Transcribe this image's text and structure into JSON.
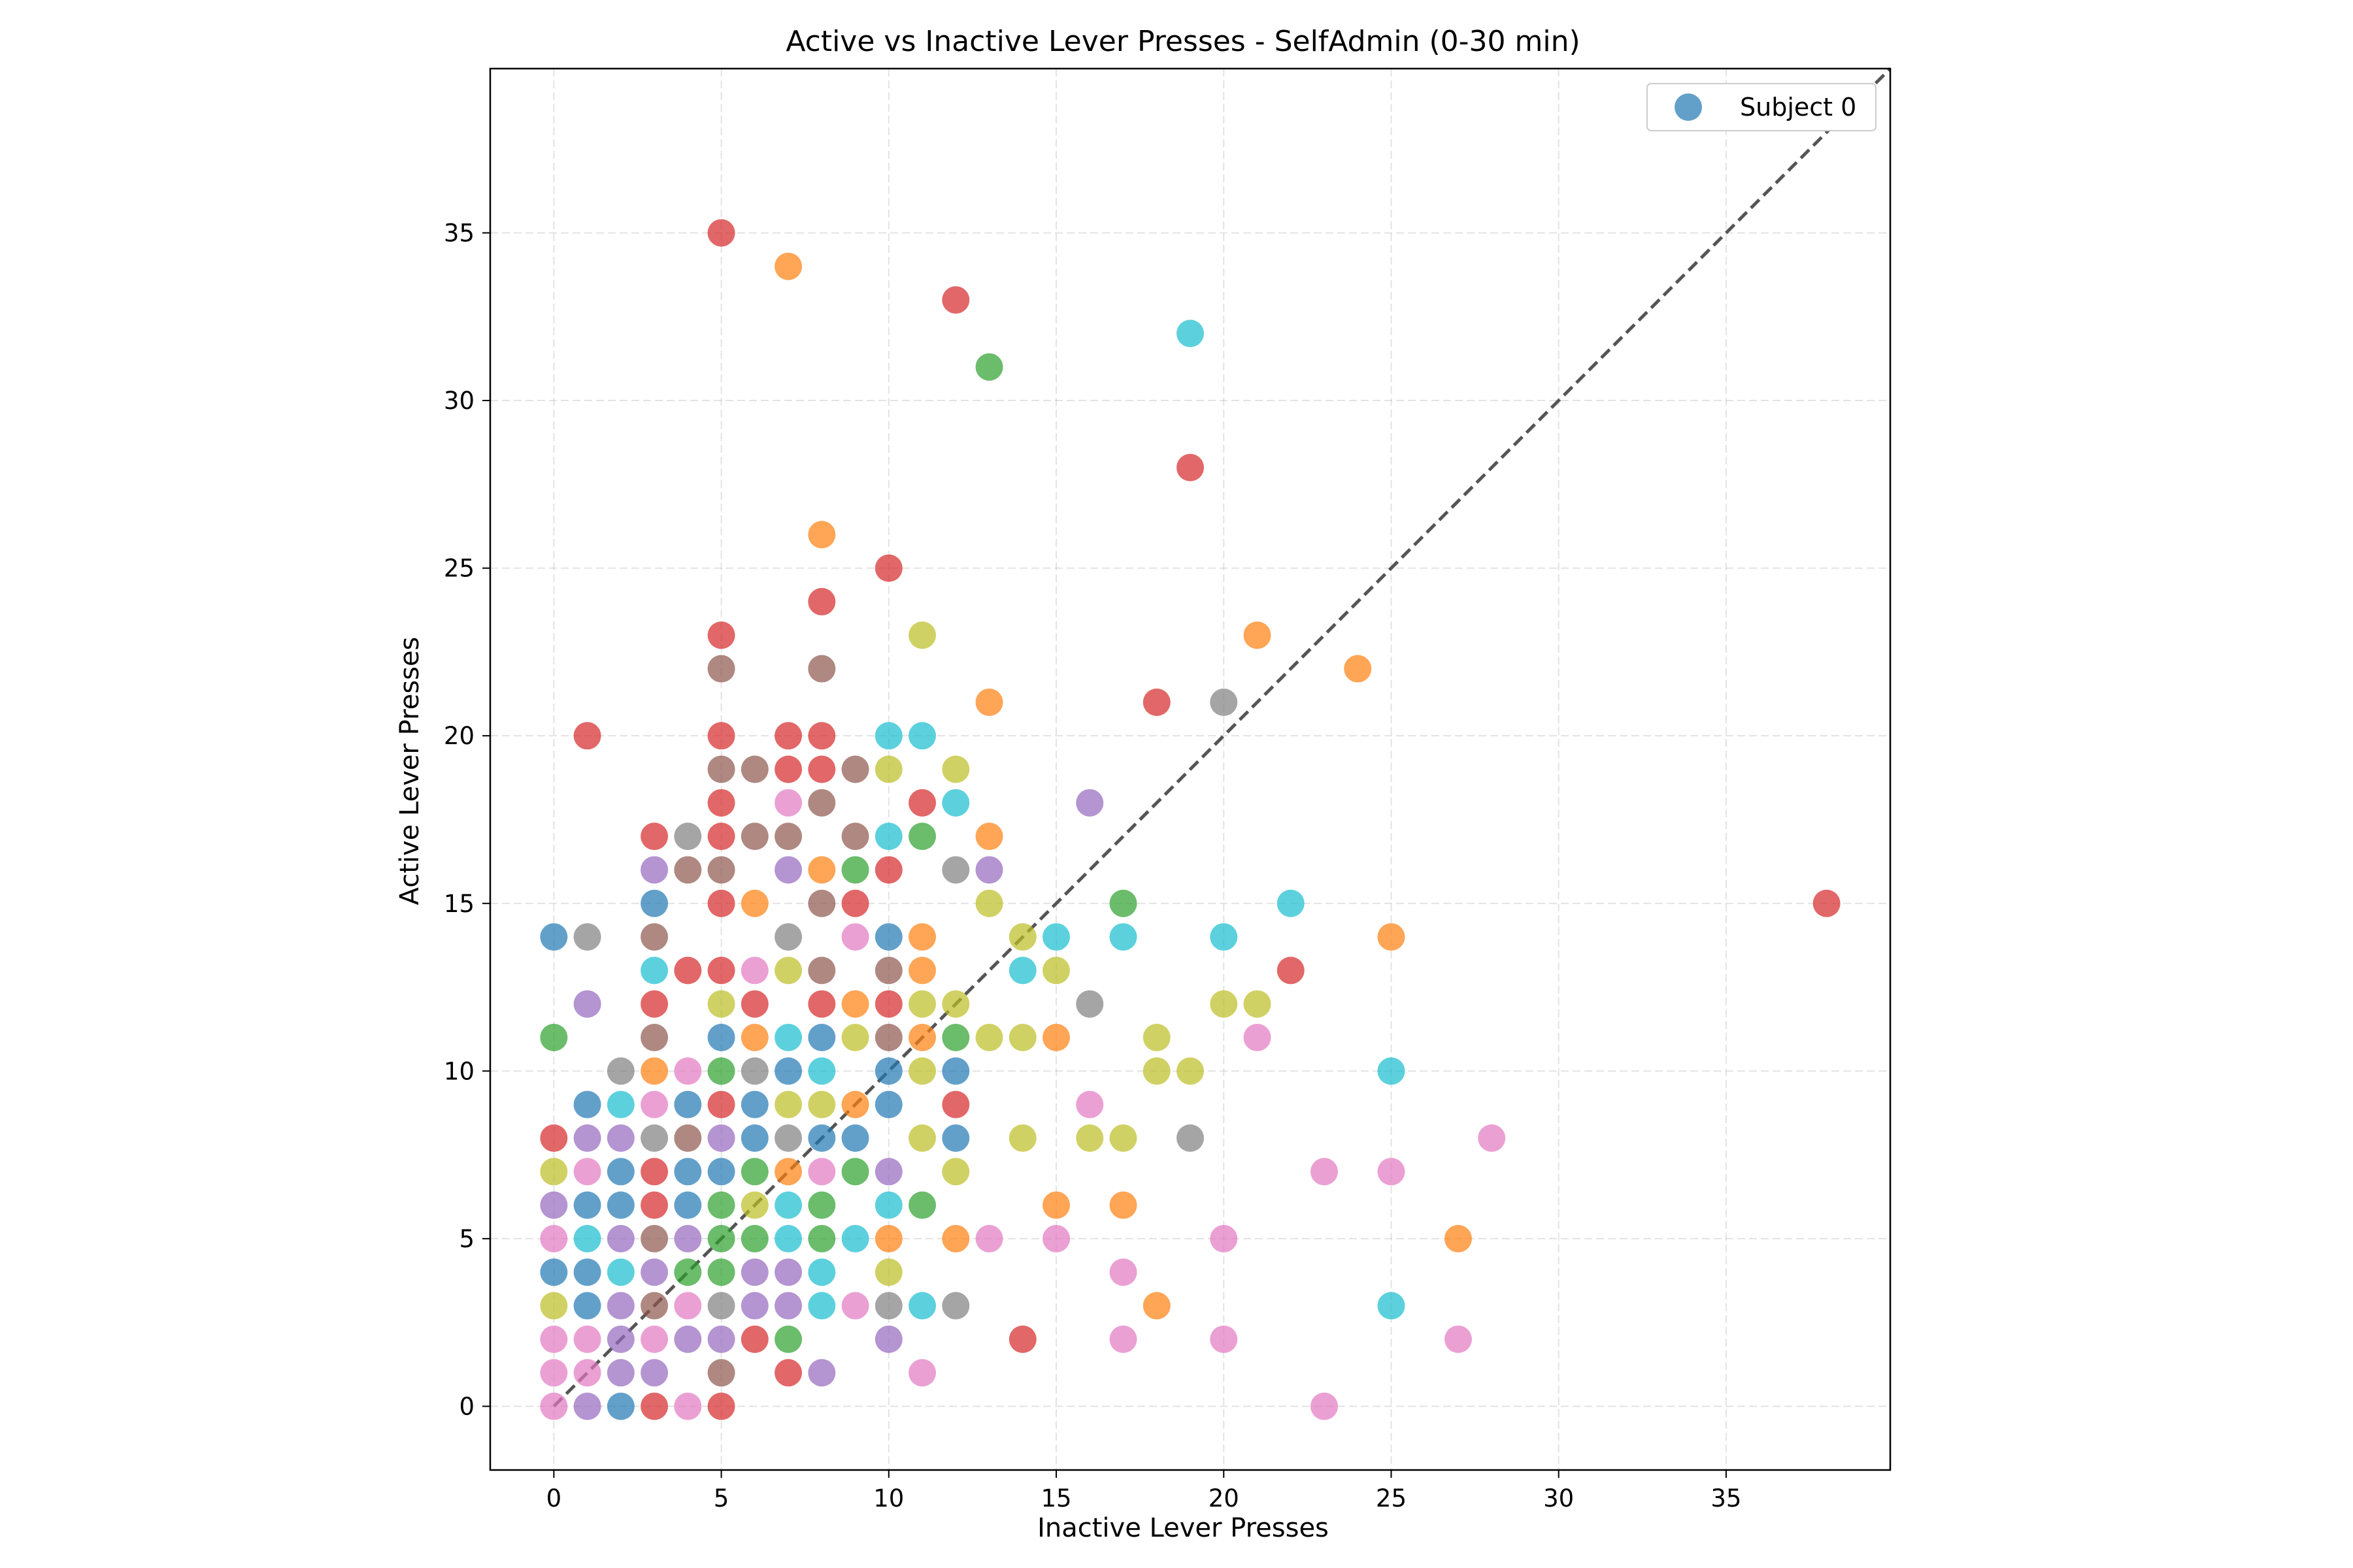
{
  "chart_data": {
    "type": "scatter",
    "title": "Active vs Inactive Lever Presses - SelfAdmin (0-30 min)",
    "xlabel": "Inactive Lever Presses",
    "ylabel": "Active Lever Presses",
    "xlim": [
      -1.9,
      39.9
    ],
    "ylim": [
      -1.9,
      39.9
    ],
    "xticks": [
      0,
      5,
      10,
      15,
      20,
      25,
      30,
      35
    ],
    "yticks": [
      0,
      5,
      10,
      15,
      20,
      25,
      30,
      35
    ],
    "grid": true,
    "legend": {
      "placement": "top-right",
      "entries": [
        "Subject 0"
      ],
      "color": "#1f77b4"
    },
    "reference_line": {
      "style": "dashed",
      "color": "#555555",
      "from": [
        0,
        0
      ],
      "to": [
        39.9,
        39.9
      ]
    },
    "palette": [
      "#1f77b4",
      "#ff7f0e",
      "#2ca02c",
      "#d62728",
      "#9467bd",
      "#8c564b",
      "#e377c2",
      "#7f7f7f",
      "#bcbd22",
      "#17becf"
    ],
    "points": [
      [
        5,
        35,
        3
      ],
      [
        7,
        34,
        1
      ],
      [
        12,
        33,
        3
      ],
      [
        13,
        31,
        2
      ],
      [
        19,
        32,
        9
      ],
      [
        19,
        28,
        3
      ],
      [
        8,
        26,
        1
      ],
      [
        10,
        25,
        3
      ],
      [
        8,
        24,
        3
      ],
      [
        5,
        23,
        3
      ],
      [
        11,
        23,
        8
      ],
      [
        5,
        22,
        5
      ],
      [
        8,
        22,
        5
      ],
      [
        21,
        23,
        1
      ],
      [
        24,
        22,
        1
      ],
      [
        13,
        21,
        1
      ],
      [
        18,
        21,
        3
      ],
      [
        20,
        21,
        7
      ],
      [
        1,
        20,
        3
      ],
      [
        5,
        20,
        3
      ],
      [
        7,
        20,
        3
      ],
      [
        8,
        20,
        3
      ],
      [
        10,
        20,
        9
      ],
      [
        11,
        20,
        9
      ],
      [
        5,
        19,
        5
      ],
      [
        6,
        19,
        5
      ],
      [
        7,
        19,
        3
      ],
      [
        8,
        19,
        3
      ],
      [
        9,
        19,
        5
      ],
      [
        10,
        19,
        8
      ],
      [
        12,
        19,
        8
      ],
      [
        5,
        18,
        3
      ],
      [
        7,
        18,
        6
      ],
      [
        8,
        18,
        5
      ],
      [
        11,
        18,
        3
      ],
      [
        12,
        18,
        9
      ],
      [
        16,
        18,
        4
      ],
      [
        3,
        17,
        3
      ],
      [
        4,
        17,
        7
      ],
      [
        5,
        17,
        3
      ],
      [
        6,
        17,
        5
      ],
      [
        7,
        17,
        5
      ],
      [
        9,
        17,
        5
      ],
      [
        10,
        17,
        9
      ],
      [
        11,
        17,
        2
      ],
      [
        13,
        17,
        1
      ],
      [
        3,
        16,
        4
      ],
      [
        4,
        16,
        5
      ],
      [
        5,
        16,
        5
      ],
      [
        7,
        16,
        4
      ],
      [
        8,
        16,
        1
      ],
      [
        9,
        16,
        2
      ],
      [
        10,
        16,
        3
      ],
      [
        12,
        16,
        7
      ],
      [
        13,
        16,
        4
      ],
      [
        0,
        14,
        0
      ],
      [
        1,
        14,
        7
      ],
      [
        3,
        15,
        0
      ],
      [
        5,
        15,
        3
      ],
      [
        6,
        15,
        1
      ],
      [
        8,
        15,
        5
      ],
      [
        9,
        15,
        3
      ],
      [
        13,
        15,
        8
      ],
      [
        17,
        15,
        2
      ],
      [
        22,
        15,
        9
      ],
      [
        38,
        15,
        3
      ],
      [
        3,
        14,
        5
      ],
      [
        7,
        14,
        7
      ],
      [
        9,
        14,
        6
      ],
      [
        10,
        14,
        0
      ],
      [
        11,
        14,
        1
      ],
      [
        14,
        14,
        8
      ],
      [
        15,
        14,
        9
      ],
      [
        17,
        14,
        9
      ],
      [
        20,
        14,
        9
      ],
      [
        25,
        14,
        1
      ],
      [
        3,
        13,
        9
      ],
      [
        4,
        13,
        3
      ],
      [
        5,
        13,
        3
      ],
      [
        6,
        13,
        6
      ],
      [
        7,
        13,
        8
      ],
      [
        8,
        13,
        5
      ],
      [
        10,
        13,
        5
      ],
      [
        11,
        13,
        1
      ],
      [
        14,
        13,
        9
      ],
      [
        15,
        13,
        8
      ],
      [
        22,
        13,
        3
      ],
      [
        1,
        12,
        4
      ],
      [
        3,
        12,
        3
      ],
      [
        5,
        12,
        8
      ],
      [
        6,
        12,
        3
      ],
      [
        8,
        12,
        3
      ],
      [
        9,
        12,
        1
      ],
      [
        10,
        12,
        3
      ],
      [
        11,
        12,
        8
      ],
      [
        12,
        12,
        8
      ],
      [
        16,
        12,
        7
      ],
      [
        20,
        12,
        8
      ],
      [
        21,
        12,
        8
      ],
      [
        0,
        11,
        2
      ],
      [
        3,
        11,
        5
      ],
      [
        5,
        11,
        0
      ],
      [
        6,
        11,
        1
      ],
      [
        7,
        11,
        9
      ],
      [
        8,
        11,
        0
      ],
      [
        9,
        11,
        8
      ],
      [
        10,
        11,
        5
      ],
      [
        11,
        11,
        1
      ],
      [
        12,
        11,
        2
      ],
      [
        13,
        11,
        8
      ],
      [
        14,
        11,
        8
      ],
      [
        15,
        11,
        1
      ],
      [
        18,
        11,
        8
      ],
      [
        21,
        11,
        6
      ],
      [
        2,
        10,
        7
      ],
      [
        3,
        10,
        1
      ],
      [
        4,
        10,
        6
      ],
      [
        5,
        10,
        2
      ],
      [
        6,
        10,
        7
      ],
      [
        7,
        10,
        0
      ],
      [
        8,
        10,
        9
      ],
      [
        10,
        10,
        0
      ],
      [
        11,
        10,
        8
      ],
      [
        12,
        10,
        0
      ],
      [
        18,
        10,
        8
      ],
      [
        19,
        10,
        8
      ],
      [
        25,
        10,
        9
      ],
      [
        1,
        9,
        0
      ],
      [
        2,
        9,
        9
      ],
      [
        3,
        9,
        6
      ],
      [
        4,
        9,
        0
      ],
      [
        5,
        9,
        3
      ],
      [
        6,
        9,
        0
      ],
      [
        7,
        9,
        8
      ],
      [
        8,
        9,
        8
      ],
      [
        9,
        9,
        1
      ],
      [
        10,
        9,
        0
      ],
      [
        12,
        9,
        3
      ],
      [
        16,
        9,
        6
      ],
      [
        0,
        8,
        3
      ],
      [
        1,
        8,
        4
      ],
      [
        2,
        8,
        4
      ],
      [
        3,
        8,
        7
      ],
      [
        4,
        8,
        5
      ],
      [
        5,
        8,
        4
      ],
      [
        6,
        8,
        0
      ],
      [
        7,
        8,
        7
      ],
      [
        8,
        8,
        0
      ],
      [
        9,
        8,
        0
      ],
      [
        11,
        8,
        8
      ],
      [
        12,
        8,
        0
      ],
      [
        14,
        8,
        8
      ],
      [
        16,
        8,
        8
      ],
      [
        17,
        8,
        8
      ],
      [
        19,
        8,
        7
      ],
      [
        28,
        8,
        6
      ],
      [
        0,
        7,
        8
      ],
      [
        1,
        7,
        6
      ],
      [
        2,
        7,
        0
      ],
      [
        3,
        7,
        3
      ],
      [
        4,
        7,
        0
      ],
      [
        5,
        7,
        0
      ],
      [
        6,
        7,
        2
      ],
      [
        7,
        7,
        1
      ],
      [
        8,
        7,
        6
      ],
      [
        9,
        7,
        2
      ],
      [
        10,
        7,
        4
      ],
      [
        12,
        7,
        8
      ],
      [
        23,
        7,
        6
      ],
      [
        25,
        7,
        6
      ],
      [
        0,
        6,
        4
      ],
      [
        1,
        6,
        0
      ],
      [
        2,
        6,
        0
      ],
      [
        3,
        6,
        3
      ],
      [
        4,
        6,
        0
      ],
      [
        5,
        6,
        2
      ],
      [
        6,
        6,
        8
      ],
      [
        7,
        6,
        9
      ],
      [
        8,
        6,
        2
      ],
      [
        10,
        6,
        9
      ],
      [
        11,
        6,
        2
      ],
      [
        15,
        6,
        1
      ],
      [
        17,
        6,
        1
      ],
      [
        0,
        5,
        6
      ],
      [
        1,
        5,
        9
      ],
      [
        2,
        5,
        4
      ],
      [
        3,
        5,
        5
      ],
      [
        4,
        5,
        4
      ],
      [
        5,
        5,
        2
      ],
      [
        6,
        5,
        2
      ],
      [
        7,
        5,
        9
      ],
      [
        8,
        5,
        2
      ],
      [
        9,
        5,
        9
      ],
      [
        10,
        5,
        1
      ],
      [
        12,
        5,
        1
      ],
      [
        13,
        5,
        6
      ],
      [
        15,
        5,
        6
      ],
      [
        20,
        5,
        6
      ],
      [
        27,
        5,
        1
      ],
      [
        0,
        4,
        0
      ],
      [
        1,
        4,
        0
      ],
      [
        2,
        4,
        9
      ],
      [
        3,
        4,
        4
      ],
      [
        4,
        4,
        2
      ],
      [
        5,
        4,
        2
      ],
      [
        6,
        4,
        4
      ],
      [
        7,
        4,
        4
      ],
      [
        8,
        4,
        9
      ],
      [
        10,
        4,
        8
      ],
      [
        17,
        4,
        6
      ],
      [
        0,
        3,
        8
      ],
      [
        1,
        3,
        0
      ],
      [
        2,
        3,
        4
      ],
      [
        3,
        3,
        5
      ],
      [
        4,
        3,
        6
      ],
      [
        5,
        3,
        7
      ],
      [
        6,
        3,
        4
      ],
      [
        7,
        3,
        4
      ],
      [
        8,
        3,
        9
      ],
      [
        9,
        3,
        6
      ],
      [
        10,
        3,
        7
      ],
      [
        11,
        3,
        9
      ],
      [
        12,
        3,
        7
      ],
      [
        18,
        3,
        1
      ],
      [
        25,
        3,
        9
      ],
      [
        0,
        2,
        6
      ],
      [
        1,
        2,
        6
      ],
      [
        2,
        2,
        4
      ],
      [
        3,
        2,
        6
      ],
      [
        4,
        2,
        4
      ],
      [
        5,
        2,
        4
      ],
      [
        6,
        2,
        3
      ],
      [
        7,
        2,
        2
      ],
      [
        10,
        2,
        4
      ],
      [
        14,
        2,
        3
      ],
      [
        17,
        2,
        6
      ],
      [
        20,
        2,
        6
      ],
      [
        27,
        2,
        6
      ],
      [
        0,
        1,
        6
      ],
      [
        1,
        1,
        6
      ],
      [
        2,
        1,
        4
      ],
      [
        3,
        1,
        4
      ],
      [
        5,
        1,
        5
      ],
      [
        7,
        1,
        3
      ],
      [
        8,
        1,
        4
      ],
      [
        11,
        1,
        6
      ],
      [
        0,
        0,
        6
      ],
      [
        1,
        0,
        4
      ],
      [
        2,
        0,
        0
      ],
      [
        3,
        0,
        3
      ],
      [
        4,
        0,
        6
      ],
      [
        5,
        0,
        3
      ],
      [
        23,
        0,
        6
      ]
    ]
  }
}
